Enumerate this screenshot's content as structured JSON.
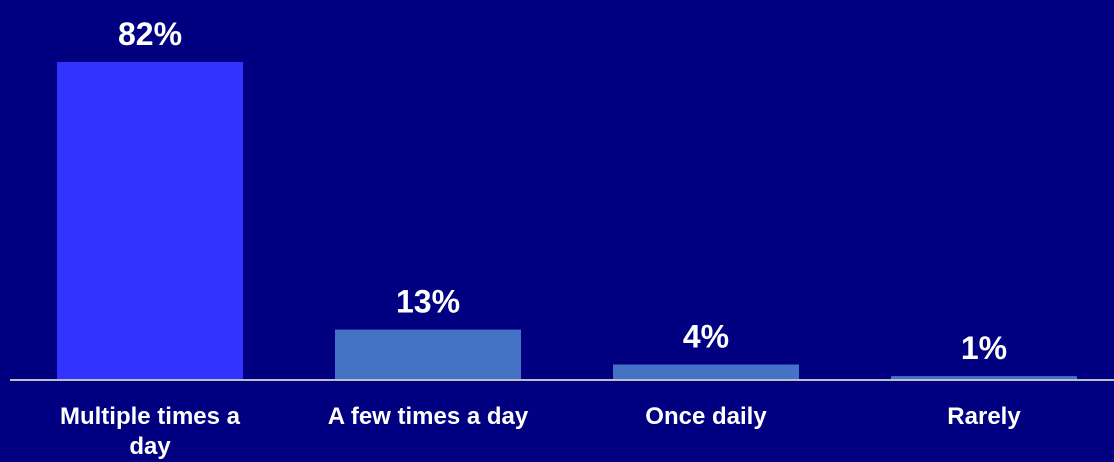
{
  "chart_data": {
    "type": "bar",
    "categories": [
      "Multiple times a day",
      "A few times a day",
      "Once daily",
      "Rarely"
    ],
    "values": [
      82,
      13,
      4,
      1
    ],
    "data_labels": [
      "82%",
      "13%",
      "4%",
      "1%"
    ],
    "title": "",
    "xlabel": "",
    "ylabel": "",
    "ylim": [
      0,
      82
    ],
    "grid": false,
    "legend": "none",
    "colors": {
      "background": "#000080",
      "highlight_bar": "#3333ff",
      "bar": "#4472c4",
      "text": "#ffffff",
      "axis": "#bfbfbf"
    }
  }
}
